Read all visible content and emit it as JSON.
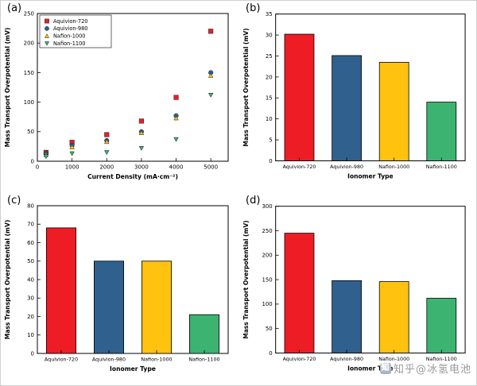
{
  "watermark": {
    "text": "知乎@冰氢电池",
    "logo_glyph": "知"
  },
  "ionomer_colors": {
    "aquivion_720": "#ee1c25",
    "aquivion_980": "#30608d",
    "nafion_1000": "#ffc20e",
    "nafion_1100": "#3cb371"
  },
  "chart_data": [
    {
      "panel": "(a)",
      "type": "scatter",
      "x": [
        250,
        1000,
        2000,
        3000,
        4000,
        5000
      ],
      "series": [
        {
          "name": "Aquivion-720",
          "marker": "square",
          "color": "#ee1c25",
          "values": [
            15,
            32,
            45,
            68,
            108,
            220
          ]
        },
        {
          "name": "Aquivion-980",
          "marker": "circle",
          "color": "#30608d",
          "values": [
            13,
            27,
            35,
            50,
            77,
            150
          ]
        },
        {
          "name": "Nafion-1000",
          "marker": "triangle-up",
          "color": "#ffc20e",
          "values": [
            11,
            24,
            33,
            48,
            73,
            145
          ]
        },
        {
          "name": "Nafion-1100",
          "marker": "triangle-down",
          "color": "#3cb371",
          "values": [
            8,
            13,
            15,
            22,
            37,
            112
          ]
        }
      ],
      "xlabel": "Current Density (mA·cm⁻²)",
      "ylabel": "Mass Transport Overpotential (mV)",
      "xlim": [
        0,
        5500
      ],
      "ylim": [
        0,
        250
      ],
      "xticks": [
        0,
        1000,
        2000,
        3000,
        4000,
        5000
      ],
      "yticks": [
        0,
        50,
        100,
        150,
        200,
        250
      ],
      "legend_position": "top-left",
      "grid": false
    },
    {
      "panel": "(b)",
      "type": "bar",
      "categories": [
        "Aquivion-720",
        "Aquivion-980",
        "Nafion-1000",
        "Nafion-1100"
      ],
      "values": [
        30.2,
        25.1,
        23.5,
        14
      ],
      "colors": [
        "#ee1c25",
        "#30608d",
        "#ffc20e",
        "#3cb371"
      ],
      "xlabel": "Ionomer Type",
      "ylabel": "Mass Transport Overpotential (mV)",
      "ylim": [
        0,
        35
      ],
      "yticks": [
        0,
        5,
        10,
        15,
        20,
        25,
        30,
        35
      ],
      "grid": false
    },
    {
      "panel": "(c)",
      "type": "bar",
      "categories": [
        "Aquivion-720",
        "Aquivion-980",
        "Nafion-1000",
        "Nafion-1100"
      ],
      "values": [
        68,
        50,
        50,
        21
      ],
      "colors": [
        "#ee1c25",
        "#30608d",
        "#ffc20e",
        "#3cb371"
      ],
      "xlabel": "Ionomer Type",
      "ylabel": "Mass Transport Overpotential (mV)",
      "ylim": [
        0,
        80
      ],
      "yticks": [
        0,
        10,
        20,
        30,
        40,
        50,
        60,
        70,
        80
      ],
      "grid": false
    },
    {
      "panel": "(d)",
      "type": "bar",
      "categories": [
        "Aquivion-720",
        "Aquivion-980",
        "Nafion-1000",
        "Nafion-1100"
      ],
      "values": [
        245,
        148,
        146,
        112
      ],
      "colors": [
        "#ee1c25",
        "#30608d",
        "#ffc20e",
        "#3cb371"
      ],
      "xlabel": "Ionomer Type",
      "ylabel": "Mass Transport Overpotential (mV)",
      "ylim": [
        0,
        300
      ],
      "yticks": [
        0,
        50,
        100,
        150,
        200,
        250,
        300
      ],
      "grid": false
    }
  ]
}
